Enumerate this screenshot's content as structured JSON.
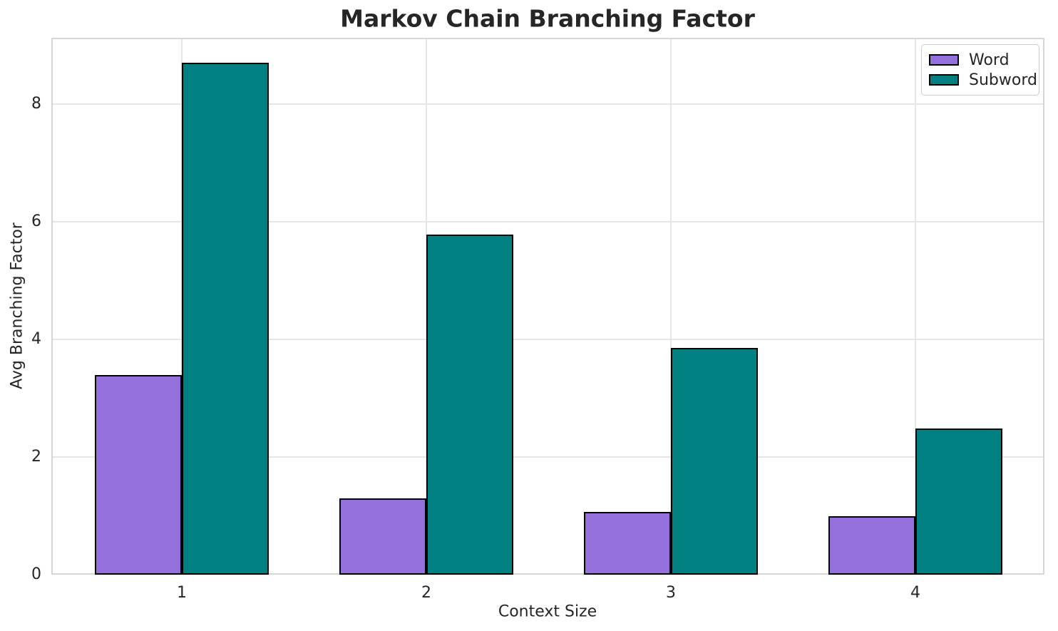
{
  "chart_data": {
    "type": "bar",
    "title": "Markov Chain Branching Factor",
    "xlabel": "Context Size",
    "ylabel": "Avg Branching Factor",
    "categories": [
      "1",
      "2",
      "3",
      "4"
    ],
    "series": [
      {
        "name": "Word",
        "color": "#9370DB",
        "values": [
          3.4,
          1.3,
          1.07,
          1.0
        ]
      },
      {
        "name": "Subword",
        "color": "#008080",
        "values": [
          8.7,
          5.78,
          3.85,
          2.48
        ]
      }
    ],
    "y_ticks": [
      0,
      2,
      4,
      6,
      8
    ],
    "ylim": [
      0,
      9.13
    ],
    "bar_edge_color": "#000000",
    "grid": true,
    "legend_position": "upper right"
  }
}
